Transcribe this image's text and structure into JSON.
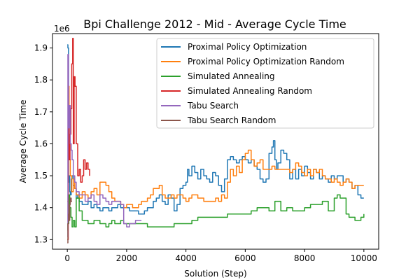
{
  "chart_data": {
    "type": "line",
    "title": "Bpi Challenge 2012 - Mid - Average Cycle Time",
    "xlabel": "Solution (Step)",
    "ylabel": "Average Cycle Time",
    "y_offset_label": "1e6",
    "xlim": [
      -500,
      10500
    ],
    "ylim": [
      1.27,
      1.945
    ],
    "x_ticks": [
      0,
      2000,
      4000,
      6000,
      8000,
      10000
    ],
    "x_tick_labels": [
      "0",
      "2000",
      "4000",
      "6000",
      "8000",
      "10000"
    ],
    "y_ticks": [
      1.3,
      1.4,
      1.5,
      1.6,
      1.7,
      1.8,
      1.9
    ],
    "y_tick_labels": [
      "1.3",
      "1.4",
      "1.5",
      "1.6",
      "1.7",
      "1.8",
      "1.9"
    ],
    "grid": false,
    "legend_position": "top-right",
    "series": [
      {
        "name": "Proximal Policy Optimization",
        "color": "#1f77b4",
        "x": [
          0,
          20,
          40,
          60,
          80,
          100,
          130,
          160,
          200,
          250,
          300,
          350,
          400,
          500,
          600,
          700,
          800,
          900,
          1000,
          1100,
          1200,
          1300,
          1400,
          1500,
          1600,
          1700,
          1800,
          1900,
          2000,
          2100,
          2200,
          2300,
          2400,
          2500,
          2600,
          2700,
          2800,
          2900,
          3000,
          3100,
          3200,
          3300,
          3400,
          3500,
          3600,
          3700,
          3800,
          3900,
          4000,
          4050,
          4100,
          4200,
          4300,
          4400,
          4500,
          4600,
          4700,
          4800,
          4900,
          5000,
          5100,
          5200,
          5300,
          5400,
          5500,
          5600,
          5700,
          5800,
          5900,
          6000,
          6100,
          6200,
          6300,
          6400,
          6500,
          6600,
          6700,
          6800,
          6900,
          6950,
          7000,
          7050,
          7100,
          7200,
          7300,
          7400,
          7500,
          7600,
          7700,
          7800,
          7900,
          8000,
          8100,
          8200,
          8300,
          8400,
          8500,
          8600,
          8700,
          8800,
          8900,
          9000,
          9100,
          9200,
          9300,
          9400,
          9500,
          9600,
          9700,
          9800,
          9900,
          10000
        ],
        "y": [
          1.91,
          1.9,
          1.48,
          1.5,
          1.45,
          1.44,
          1.49,
          1.5,
          1.47,
          1.46,
          1.43,
          1.44,
          1.42,
          1.41,
          1.41,
          1.42,
          1.4,
          1.41,
          1.4,
          1.39,
          1.4,
          1.4,
          1.39,
          1.4,
          1.4,
          1.41,
          1.4,
          1.4,
          1.4,
          1.39,
          1.39,
          1.39,
          1.38,
          1.38,
          1.39,
          1.4,
          1.4,
          1.42,
          1.43,
          1.44,
          1.42,
          1.41,
          1.44,
          1.43,
          1.39,
          1.41,
          1.46,
          1.47,
          1.48,
          1.52,
          1.5,
          1.53,
          1.51,
          1.49,
          1.52,
          1.5,
          1.49,
          1.48,
          1.51,
          1.5,
          1.47,
          1.45,
          1.49,
          1.55,
          1.56,
          1.55,
          1.54,
          1.55,
          1.56,
          1.55,
          1.54,
          1.55,
          1.53,
          1.52,
          1.49,
          1.48,
          1.49,
          1.57,
          1.59,
          1.61,
          1.55,
          1.52,
          1.54,
          1.58,
          1.57,
          1.55,
          1.49,
          1.52,
          1.49,
          1.52,
          1.5,
          1.53,
          1.51,
          1.49,
          1.52,
          1.51,
          1.49,
          1.5,
          1.49,
          1.48,
          1.5,
          1.49,
          1.5,
          1.5,
          1.48,
          1.49,
          1.48,
          1.46,
          1.47,
          1.44,
          1.43,
          1.43
        ]
      },
      {
        "name": "Proximal Policy Optimization Random",
        "color": "#ff7f0e",
        "x": [
          0,
          30,
          60,
          100,
          150,
          200,
          250,
          300,
          400,
          500,
          600,
          700,
          800,
          900,
          1000,
          1100,
          1200,
          1300,
          1400,
          1500,
          1600,
          1700,
          1800,
          1900,
          2000,
          2100,
          2200,
          2300,
          2400,
          2500,
          2600,
          2700,
          2800,
          2900,
          3000,
          3100,
          3200,
          3300,
          3400,
          3500,
          3600,
          3700,
          3800,
          3900,
          4000,
          4100,
          4200,
          4300,
          4400,
          4500,
          4600,
          4700,
          4800,
          4900,
          5000,
          5100,
          5200,
          5300,
          5400,
          5500,
          5600,
          5700,
          5800,
          5900,
          6000,
          6100,
          6200,
          6300,
          6400,
          6500,
          6600,
          6700,
          6800,
          6900,
          7000,
          7100,
          7200,
          7300,
          7400,
          7500,
          7600,
          7700,
          7800,
          7900,
          8000,
          8100,
          8200,
          8300,
          8400,
          8500,
          8600,
          8700,
          8800,
          8900,
          9000,
          9100,
          9200,
          9300,
          9400,
          9500,
          9600,
          9700,
          9800,
          9900,
          10000
        ],
        "y": [
          1.42,
          1.78,
          1.55,
          1.5,
          1.45,
          1.49,
          1.46,
          1.44,
          1.43,
          1.45,
          1.44,
          1.43,
          1.45,
          1.46,
          1.44,
          1.48,
          1.48,
          1.47,
          1.45,
          1.43,
          1.42,
          1.42,
          1.41,
          1.4,
          1.41,
          1.41,
          1.4,
          1.4,
          1.41,
          1.42,
          1.42,
          1.43,
          1.44,
          1.46,
          1.46,
          1.47,
          1.44,
          1.43,
          1.43,
          1.44,
          1.43,
          1.44,
          1.44,
          1.43,
          1.42,
          1.43,
          1.44,
          1.44,
          1.43,
          1.43,
          1.42,
          1.42,
          1.42,
          1.42,
          1.43,
          1.42,
          1.44,
          1.43,
          1.48,
          1.52,
          1.5,
          1.53,
          1.51,
          1.55,
          1.57,
          1.58,
          1.55,
          1.53,
          1.54,
          1.55,
          1.52,
          1.52,
          1.52,
          1.53,
          1.52,
          1.52,
          1.52,
          1.52,
          1.52,
          1.51,
          1.52,
          1.54,
          1.53,
          1.51,
          1.5,
          1.52,
          1.5,
          1.52,
          1.51,
          1.52,
          1.5,
          1.49,
          1.49,
          1.48,
          1.49,
          1.48,
          1.47,
          1.48,
          1.49,
          1.48,
          1.46,
          1.47,
          1.47,
          1.47,
          1.47
        ]
      },
      {
        "name": "Simulated Annealing",
        "color": "#2ca02c",
        "x": [
          0,
          20,
          50,
          80,
          120,
          160,
          200,
          250,
          300,
          400,
          500,
          600,
          700,
          800,
          900,
          1000,
          1100,
          1200,
          1300,
          1400,
          1500,
          1600,
          1700,
          1800,
          1900,
          2000,
          2100,
          2200,
          2300,
          2400,
          2500,
          2600,
          2700,
          2800,
          2900,
          3000,
          3200,
          3400,
          3600,
          3800,
          4000,
          4200,
          4400,
          4600,
          4800,
          5000,
          5200,
          5400,
          5600,
          5800,
          6000,
          6200,
          6400,
          6600,
          6800,
          7000,
          7200,
          7400,
          7600,
          7800,
          8000,
          8200,
          8400,
          8600,
          8800,
          9000,
          9100,
          9200,
          9300,
          9400,
          9500,
          9600,
          9700,
          9800,
          9900,
          10000
        ],
        "y": [
          1.33,
          1.35,
          1.44,
          1.4,
          1.37,
          1.34,
          1.36,
          1.34,
          1.43,
          1.39,
          1.36,
          1.36,
          1.35,
          1.35,
          1.36,
          1.36,
          1.35,
          1.35,
          1.34,
          1.35,
          1.36,
          1.35,
          1.35,
          1.36,
          1.35,
          1.35,
          1.35,
          1.35,
          1.35,
          1.35,
          1.35,
          1.35,
          1.34,
          1.34,
          1.34,
          1.34,
          1.34,
          1.34,
          1.35,
          1.35,
          1.35,
          1.36,
          1.37,
          1.37,
          1.37,
          1.37,
          1.37,
          1.38,
          1.38,
          1.38,
          1.38,
          1.39,
          1.4,
          1.4,
          1.39,
          1.42,
          1.39,
          1.4,
          1.39,
          1.39,
          1.4,
          1.41,
          1.41,
          1.42,
          1.39,
          1.43,
          1.44,
          1.43,
          1.43,
          1.38,
          1.37,
          1.37,
          1.36,
          1.36,
          1.37,
          1.38
        ]
      },
      {
        "name": "Simulated Annealing Random",
        "color": "#d62728",
        "x": [
          0,
          30,
          60,
          90,
          120,
          150,
          180,
          200,
          230,
          260,
          300,
          350,
          400,
          450,
          500,
          550,
          600,
          650,
          700,
          750
        ],
        "y": [
          1.3,
          1.68,
          1.55,
          1.63,
          1.71,
          1.85,
          1.93,
          1.6,
          1.81,
          1.78,
          1.6,
          1.5,
          1.52,
          1.48,
          1.5,
          1.55,
          1.52,
          1.54,
          1.52,
          1.5
        ]
      },
      {
        "name": "Tabu Search",
        "color": "#9467bd",
        "x": [
          0,
          20,
          40,
          70,
          100,
          130,
          160,
          200,
          250,
          300,
          400,
          500,
          600,
          700,
          800,
          900,
          1000,
          1100,
          1200,
          1300,
          1400,
          1500,
          1600,
          1700,
          1800,
          1900,
          2000,
          2100,
          2200,
          2300,
          2400,
          2500
        ],
        "y": [
          1.31,
          1.88,
          1.65,
          1.72,
          1.6,
          1.58,
          1.55,
          1.5,
          1.48,
          1.45,
          1.44,
          1.44,
          1.42,
          1.43,
          1.44,
          1.42,
          1.41,
          1.44,
          1.43,
          1.42,
          1.41,
          1.42,
          1.42,
          1.42,
          1.41,
          1.35,
          1.34,
          1.35,
          1.35,
          1.36,
          1.36,
          1.36
        ]
      },
      {
        "name": "Tabu Search Random",
        "color": "#8c564b",
        "x": [
          0,
          20,
          40,
          60,
          80,
          100,
          130,
          160
        ],
        "y": [
          1.29,
          1.35,
          1.38,
          1.36,
          1.41,
          1.43,
          1.42,
          1.42
        ]
      }
    ]
  }
}
